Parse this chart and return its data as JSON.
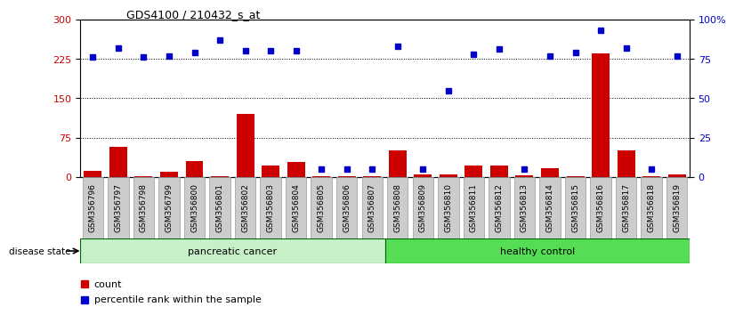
{
  "title": "GDS4100 / 210432_s_at",
  "samples": [
    "GSM356796",
    "GSM356797",
    "GSM356798",
    "GSM356799",
    "GSM356800",
    "GSM356801",
    "GSM356802",
    "GSM356803",
    "GSM356804",
    "GSM356805",
    "GSM356806",
    "GSM356807",
    "GSM356808",
    "GSM356809",
    "GSM356810",
    "GSM356811",
    "GSM356812",
    "GSM356813",
    "GSM356814",
    "GSM356815",
    "GSM356816",
    "GSM356817",
    "GSM356818",
    "GSM356819"
  ],
  "counts": [
    12,
    57,
    1,
    10,
    30,
    1,
    120,
    22,
    28,
    1,
    1,
    1,
    50,
    5,
    5,
    22,
    22,
    3,
    16,
    1,
    235,
    50,
    2,
    5
  ],
  "percentiles": [
    76,
    82,
    76,
    77,
    79,
    87,
    80,
    80,
    80,
    5,
    5,
    5,
    83,
    5,
    55,
    78,
    81,
    5,
    77,
    79,
    93,
    82,
    5,
    77
  ],
  "group_labels": [
    "pancreatic cancer",
    "healthy control"
  ],
  "group_split": 12,
  "group_color_cancer": "#C8F0C8",
  "group_color_healthy": "#55DD55",
  "ylim_left": [
    0,
    300
  ],
  "ylim_right": [
    0,
    100
  ],
  "yticks_left": [
    0,
    75,
    150,
    225,
    300
  ],
  "yticks_right": [
    0,
    25,
    50,
    75,
    100
  ],
  "ytick_labels_right": [
    "0",
    "25",
    "50",
    "75",
    "100%"
  ],
  "bar_color": "#CC0000",
  "dot_color": "#0000CC",
  "background_color": "#FFFFFF",
  "ticklabel_bg": "#CCCCCC",
  "ticklabel_border": "#888888",
  "legend_count_color": "#CC0000",
  "legend_pct_color": "#0000CC"
}
